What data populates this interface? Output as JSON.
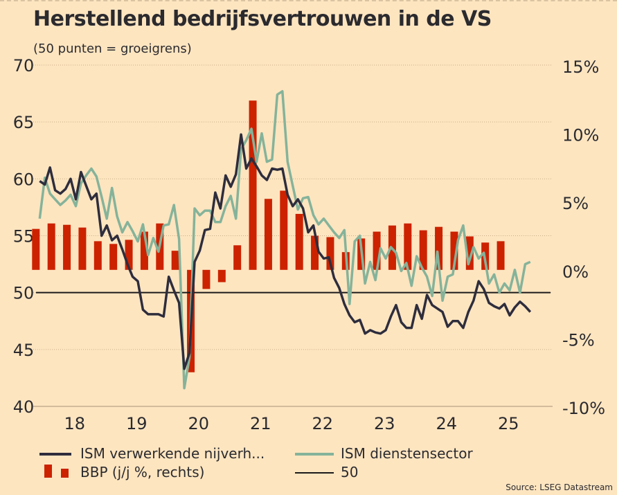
{
  "title": "Herstellend bedrijfsvertrouwen in de VS",
  "subtitle": "(50 punten = groeigrens)",
  "source": "Source: LSEG Datastream",
  "colors": {
    "background": "#fde5c0",
    "manufacturing": "#2e2d3d",
    "services": "#85b39a",
    "gdp": "#cc2200",
    "reference": "#1a1a1a"
  },
  "chart_data": {
    "type": "line+bar",
    "left_axis": {
      "ylim": [
        40,
        70
      ],
      "ticks": [
        "70",
        "65",
        "60",
        "55",
        "50",
        "45",
        "40"
      ]
    },
    "right_axis": {
      "ylim": [
        -10,
        15
      ],
      "ticks": [
        "15%",
        "10%",
        "5%",
        "0%",
        "-5%",
        "-10%"
      ]
    },
    "x_ticks": [
      "18",
      "19",
      "20",
      "21",
      "22",
      "23",
      "24",
      "25"
    ],
    "grid": "horizontal dotted",
    "legend_position": "bottom",
    "reference_line": {
      "name": "50",
      "value": 50
    },
    "monthly_start": "2017-12",
    "series": [
      {
        "name": "ISM verwerkende nijverh...",
        "axis": "left",
        "frequency": "monthly",
        "values": [
          59.8,
          59.5,
          61.0,
          59.0,
          58.7,
          59.1,
          60.0,
          58.2,
          60.6,
          59.4,
          58.2,
          58.7,
          55.0,
          55.9,
          54.6,
          55.0,
          53.8,
          52.5,
          51.4,
          51.0,
          48.5,
          48.1,
          48.1,
          48.1,
          47.9,
          51.4,
          50.2,
          49.1,
          43.3,
          44.7,
          52.7,
          53.7,
          55.5,
          55.6,
          58.8,
          57.4,
          60.3,
          59.3,
          60.4,
          63.9,
          60.9,
          61.8,
          61.1,
          60.3,
          59.9,
          60.9,
          60.8,
          60.9,
          58.6,
          57.6,
          58.2,
          57.4,
          55.3,
          55.9,
          53.6,
          53.0,
          53.1,
          51.3,
          50.4,
          49.0,
          48.0,
          47.4,
          47.6,
          46.4,
          46.7,
          46.5,
          46.4,
          46.7,
          47.9,
          48.9,
          47.4,
          46.9,
          46.9,
          48.9,
          47.7,
          49.8,
          48.9,
          48.6,
          48.3,
          47.0,
          47.5,
          47.5,
          46.9,
          48.3,
          49.3,
          51.0,
          50.3,
          49.1,
          48.8,
          48.6,
          49.0,
          48.0,
          48.7,
          49.2,
          48.8,
          48.3
        ]
      },
      {
        "name": "ISM dienstensector",
        "axis": "left",
        "frequency": "monthly",
        "values": [
          56.5,
          60.1,
          58.7,
          58.2,
          57.7,
          58.1,
          58.6,
          57.6,
          59.6,
          60.3,
          60.9,
          60.2,
          58.4,
          56.5,
          59.2,
          56.7,
          55.3,
          56.2,
          55.4,
          54.5,
          56.0,
          53.3,
          54.8,
          53.6,
          55.9,
          56.0,
          57.7,
          54.7,
          41.6,
          44.3,
          57.4,
          56.8,
          57.2,
          57.2,
          56.2,
          56.2,
          57.6,
          58.5,
          56.5,
          62.6,
          63.4,
          64.4,
          61.5,
          64.0,
          61.5,
          61.7,
          67.4,
          67.7,
          61.5,
          59.4,
          57.3,
          58.3,
          58.4,
          56.8,
          56.0,
          56.5,
          55.9,
          55.3,
          54.8,
          55.5,
          49.0,
          54.5,
          55.0,
          50.8,
          52.7,
          51.1,
          53.9,
          53.0,
          54.0,
          53.5,
          51.9,
          52.6,
          50.6,
          53.2,
          52.2,
          51.4,
          49.7,
          53.6,
          49.3,
          51.4,
          51.6,
          54.6,
          55.9,
          52.5,
          54.0,
          53.0,
          53.5,
          50.8,
          51.6,
          50.0,
          50.8,
          50.2,
          52.0,
          50.0,
          52.5,
          52.7
        ]
      },
      {
        "name": "BBP (j/j %, rechts)",
        "axis": "right",
        "frequency": "quarterly",
        "start": "2017-Q4",
        "values": [
          3.0,
          3.4,
          3.3,
          3.1,
          2.1,
          1.9,
          2.2,
          2.8,
          3.4,
          1.4,
          -7.5,
          -1.4,
          -0.9,
          1.8,
          12.4,
          5.2,
          5.8,
          4.1,
          2.5,
          2.4,
          1.3,
          2.3,
          2.8,
          3.25,
          3.4,
          2.9,
          3.15,
          2.8,
          2.45,
          2.0,
          2.1
        ]
      }
    ]
  }
}
